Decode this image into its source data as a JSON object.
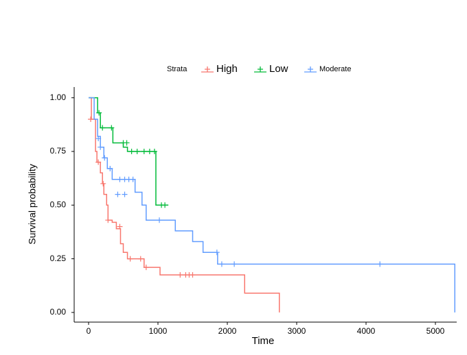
{
  "chart_data": {
    "type": "step",
    "legend_title": "Strata",
    "xlabel": "Time",
    "ylabel": "Survival probability",
    "xlim": [
      -208,
      5307
    ],
    "ylim": [
      -0.045,
      1.05
    ],
    "xticks": [
      0,
      1000,
      2000,
      3000,
      4000,
      5000
    ],
    "yticks": [
      {
        "value": 0,
        "label": "0.00"
      },
      {
        "value": 0.25,
        "label": "0.25"
      },
      {
        "value": 0.5,
        "label": "0.50"
      },
      {
        "value": 0.75,
        "label": "0.75"
      },
      {
        "value": 1,
        "label": "1.00"
      }
    ],
    "series": [
      {
        "name": "High",
        "color": "#F8766D",
        "x": [
          0,
          40,
          100,
          120,
          170,
          200,
          220,
          260,
          280,
          340,
          400,
          460,
          500,
          560,
          800,
          1030,
          2250,
          2750
        ],
        "values": [
          1.0,
          0.9,
          0.75,
          0.7,
          0.65,
          0.6,
          0.55,
          0.5,
          0.43,
          0.42,
          0.39,
          0.32,
          0.28,
          0.25,
          0.21,
          0.175,
          0.09,
          0.0
        ],
        "censor_x": [
          30,
          140,
          210,
          280,
          450,
          600,
          750,
          830,
          1320,
          1400,
          1450,
          1500
        ],
        "censor_values": [
          0.9,
          0.7,
          0.6,
          0.43,
          0.4,
          0.25,
          0.25,
          0.21,
          0.175,
          0.175,
          0.175,
          0.175
        ]
      },
      {
        "name": "Low",
        "color": "#00BA38",
        "x": [
          0,
          130,
          170,
          350,
          500,
          560,
          970,
          1150
        ],
        "values": [
          1.0,
          0.93,
          0.86,
          0.79,
          0.77,
          0.75,
          0.5,
          0.5
        ],
        "censor_x": [
          150,
          200,
          330,
          500,
          550,
          620,
          700,
          800,
          880,
          950,
          1050,
          1100
        ],
        "censor_values": [
          0.93,
          0.86,
          0.86,
          0.79,
          0.79,
          0.75,
          0.75,
          0.75,
          0.75,
          0.75,
          0.5,
          0.5
        ]
      },
      {
        "name": "Moderate",
        "color": "#619CFF",
        "x": [
          0,
          80,
          130,
          170,
          220,
          270,
          340,
          670,
          770,
          830,
          1250,
          1500,
          1650,
          1860,
          5280
        ],
        "values": [
          1.0,
          0.9,
          0.82,
          0.77,
          0.72,
          0.67,
          0.62,
          0.56,
          0.5,
          0.43,
          0.38,
          0.33,
          0.28,
          0.225,
          0.0
        ],
        "censor_x": [
          140,
          170,
          230,
          310,
          420,
          520,
          450,
          520,
          580,
          640,
          1020,
          1850,
          1920,
          2100,
          4200
        ],
        "censor_values": [
          0.81,
          0.77,
          0.72,
          0.67,
          0.55,
          0.55,
          0.62,
          0.62,
          0.62,
          0.62,
          0.43,
          0.28,
          0.225,
          0.225,
          0.225
        ]
      }
    ]
  }
}
